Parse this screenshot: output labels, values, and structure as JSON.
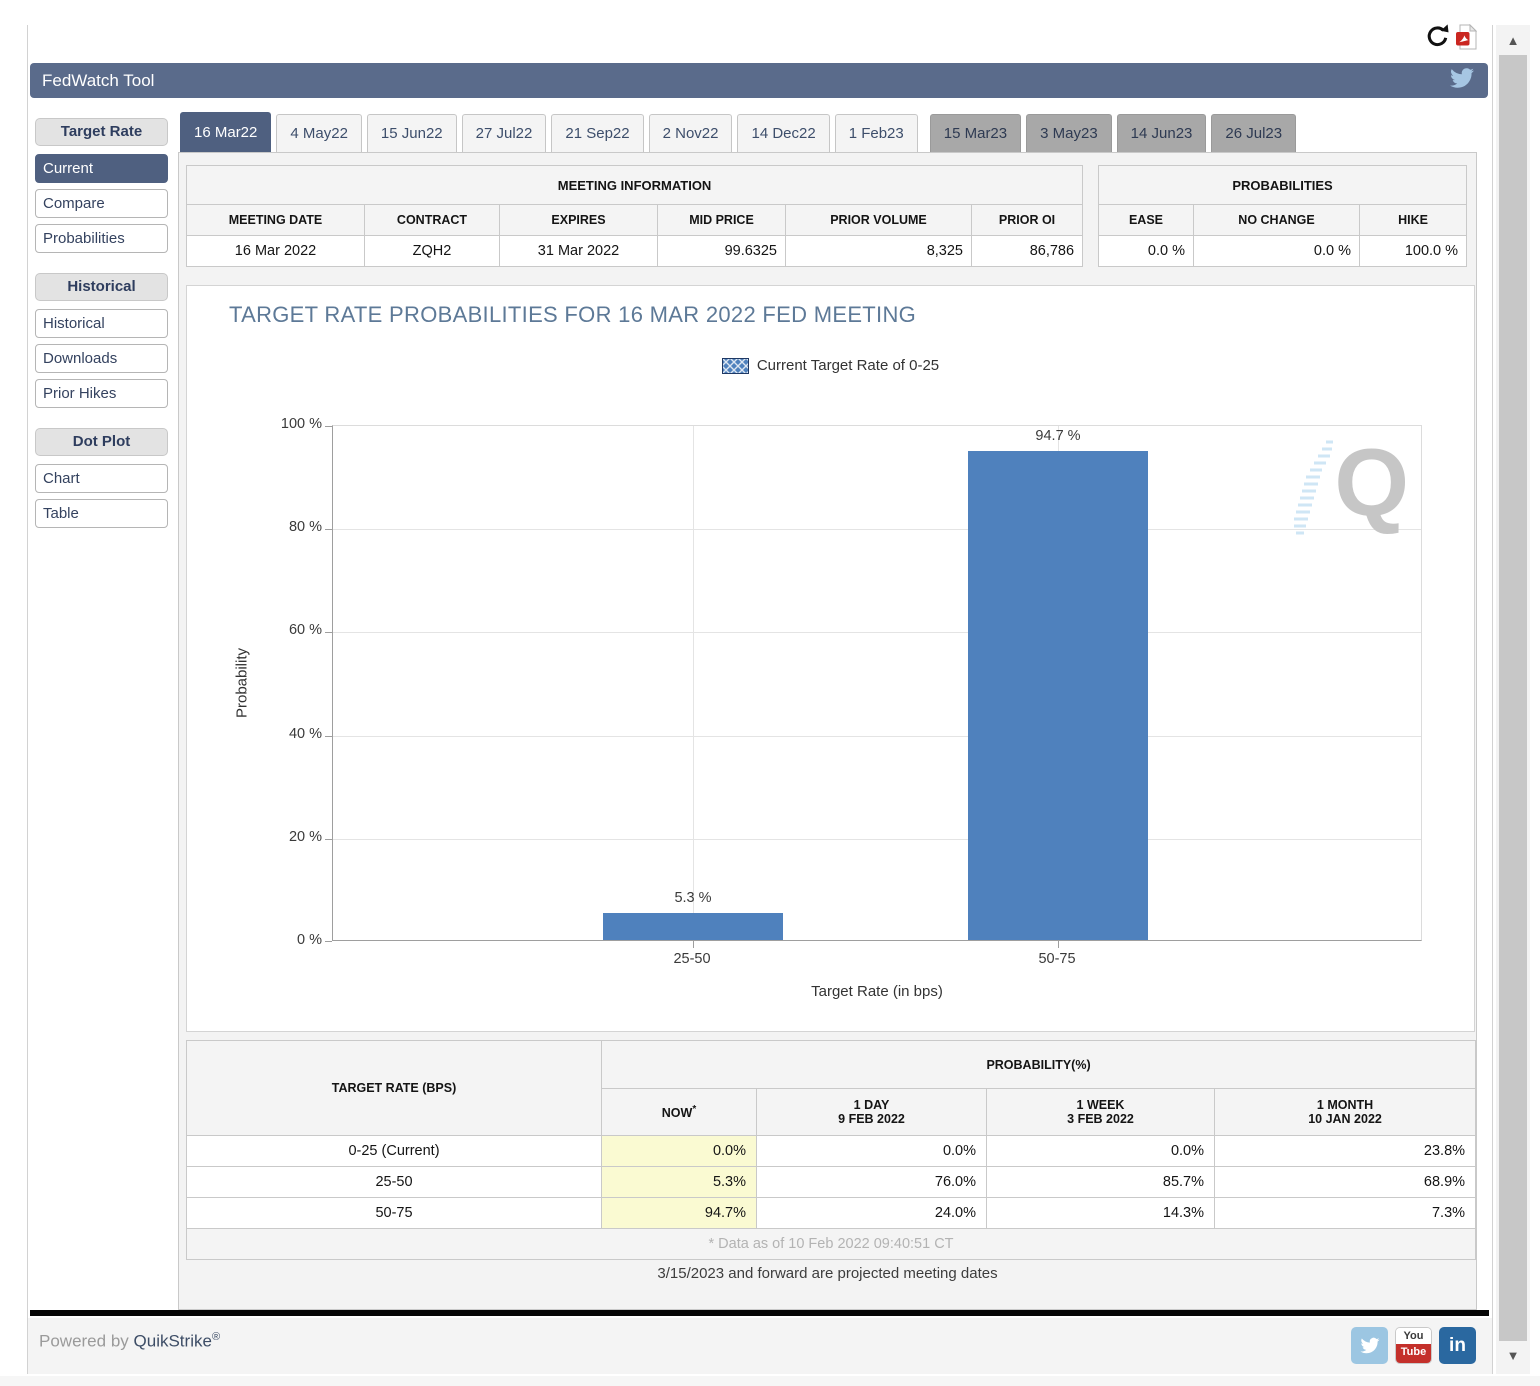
{
  "header": {
    "title": "FedWatch Tool"
  },
  "icons": {
    "refresh": "circular-refresh-arrow",
    "pdf": "pdf-export-document",
    "twitter": "twitter-bird",
    "youtube": "youtube-logo",
    "linkedin": "linkedin-logo",
    "scroll_up": "▲",
    "scroll_down": "▼"
  },
  "tabs": [
    {
      "label": "16 Mar22",
      "state": "active"
    },
    {
      "label": "4 May22",
      "state": "normal"
    },
    {
      "label": "15 Jun22",
      "state": "normal"
    },
    {
      "label": "27 Jul22",
      "state": "normal"
    },
    {
      "label": "21 Sep22",
      "state": "normal"
    },
    {
      "label": "2 Nov22",
      "state": "normal"
    },
    {
      "label": "14 Dec22",
      "state": "normal"
    },
    {
      "label": "1 Feb23",
      "state": "normal"
    },
    {
      "label": "15 Mar23",
      "state": "projected"
    },
    {
      "label": "3 May23",
      "state": "projected"
    },
    {
      "label": "14 Jun23",
      "state": "projected"
    },
    {
      "label": "26 Jul23",
      "state": "projected"
    }
  ],
  "sidebar": {
    "groups": [
      {
        "header": "Target Rate",
        "items": [
          {
            "label": "Current",
            "active": true
          },
          {
            "label": "Compare",
            "active": false
          },
          {
            "label": "Probabilities",
            "active": false
          }
        ]
      },
      {
        "header": "Historical",
        "items": [
          {
            "label": "Historical",
            "active": false
          },
          {
            "label": "Downloads",
            "active": false
          },
          {
            "label": "Prior Hikes",
            "active": false
          }
        ]
      },
      {
        "header": "Dot Plot",
        "items": [
          {
            "label": "Chart",
            "active": false
          },
          {
            "label": "Table",
            "active": false
          }
        ]
      }
    ]
  },
  "meeting_info": {
    "title": "MEETING INFORMATION",
    "columns": [
      "MEETING DATE",
      "CONTRACT",
      "EXPIRES",
      "MID PRICE",
      "PRIOR VOLUME",
      "PRIOR OI"
    ],
    "values": [
      "16 Mar 2022",
      "ZQH2",
      "31 Mar 2022",
      "99.6325",
      "8,325",
      "86,786"
    ]
  },
  "probabilities_summary": {
    "title": "PROBABILITIES",
    "columns": [
      "EASE",
      "NO CHANGE",
      "HIKE"
    ],
    "values": [
      "0.0 %",
      "0.0 %",
      "100.0 %"
    ]
  },
  "chart_data": {
    "type": "bar",
    "title": "TARGET RATE PROBABILITIES FOR 16 MAR 2022 FED MEETING",
    "legend": [
      {
        "label": "Current Target Rate of 0-25",
        "swatch": "blue-crosshatch"
      }
    ],
    "legend_position": "top-center",
    "categories": [
      "25-50",
      "50-75"
    ],
    "values": [
      5.3,
      94.7
    ],
    "value_labels": [
      "5.3 %",
      "94.7 %"
    ],
    "xlabel": "Target Rate (in bps)",
    "ylabel": "Probability",
    "ylim": [
      0,
      100
    ],
    "ytick_labels": [
      "100 %",
      "80 %",
      "60 %",
      "40 %",
      "20 %",
      "0 %"
    ],
    "grid": true,
    "bar_color": "#4f81bd",
    "watermark": "Q"
  },
  "rate_table": {
    "col_header": "TARGET RATE (BPS)",
    "group_header": "PROBABILITY(%)",
    "sub_headers": [
      {
        "line1": "NOW",
        "sup": "*"
      },
      {
        "line1": "1 DAY",
        "line2": "9 FEB 2022"
      },
      {
        "line1": "1 WEEK",
        "line2": "3 FEB 2022"
      },
      {
        "line1": "1 MONTH",
        "line2": "10 JAN 2022"
      }
    ],
    "rows": [
      {
        "rate": "0-25 (Current)",
        "now": "0.0%",
        "one_day": "0.0%",
        "one_week": "0.0%",
        "one_month": "23.8%"
      },
      {
        "rate": "25-50",
        "now": "5.3%",
        "one_day": "76.0%",
        "one_week": "85.7%",
        "one_month": "68.9%"
      },
      {
        "rate": "50-75",
        "now": "94.7%",
        "one_day": "24.0%",
        "one_week": "14.3%",
        "one_month": "7.3%"
      }
    ],
    "footnote": "* Data as of 10 Feb 2022 09:40:51 CT"
  },
  "notes": {
    "projected_dates": "3/15/2023 and forward are projected meeting dates"
  },
  "footer": {
    "powered_by": "Powered by",
    "brand": "QuikStrike",
    "registered": "®"
  },
  "colors": {
    "accent_slate": "#4f6080",
    "header_bar": "#5a6b8b",
    "bar_blue": "#4f81bd",
    "now_highlight": "#fafad2",
    "projected_tab_gray": "#a8a8a8",
    "youtube_red": "#c4302b",
    "linkedin_blue": "#2a68a0"
  }
}
